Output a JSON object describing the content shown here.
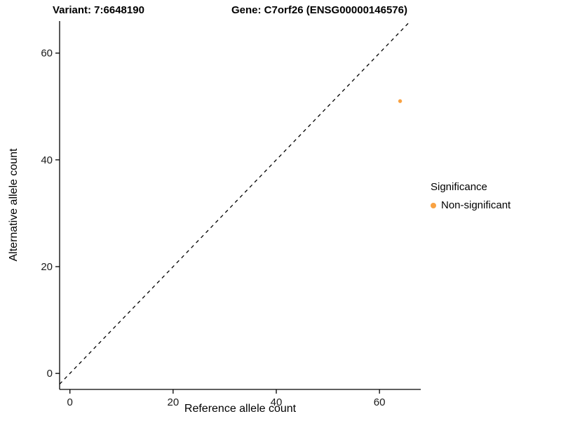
{
  "chart_data": {
    "type": "scatter",
    "title_left": "Variant: 7:6648190",
    "title_right": "Gene: C7orf26 (ENSG00000146576)",
    "xlabel": "Reference allele count",
    "ylabel": "Alternative allele count",
    "xlim": [
      -2,
      68
    ],
    "ylim": [
      -3,
      66
    ],
    "xticks": [
      0,
      20,
      40,
      60
    ],
    "yticks": [
      0,
      20,
      40,
      60
    ],
    "grid": false,
    "point_color": "#F9A242",
    "points": [
      {
        "x": 64,
        "y": 51,
        "series": "Non-significant"
      }
    ],
    "identity_line": {
      "style": "dashed",
      "color": "#000000",
      "equation": "y = x"
    },
    "legend": {
      "title": "Significance",
      "position": "right",
      "entries": [
        {
          "label": "Non-significant",
          "color": "#F9A242"
        }
      ]
    }
  }
}
